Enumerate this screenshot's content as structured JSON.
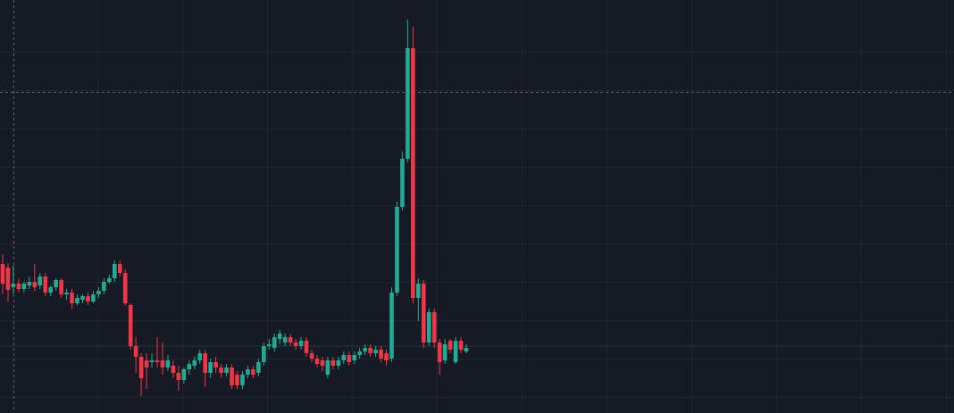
{
  "chart_data": {
    "type": "candlestick",
    "open": [
      167,
      163,
      141,
      145,
      139,
      143,
      147,
      143,
      153,
      135,
      141,
      149,
      133,
      135,
      123,
      127,
      131,
      125,
      133,
      137,
      147,
      151,
      167,
      157,
      121,
      75,
      63,
      59,
      57,
      59,
      59,
      51,
      53,
      45,
      37,
      49,
      53,
      59,
      67,
      45,
      57,
      51,
      45,
      51,
      43,
      31,
      43,
      49,
      45,
      57,
      75,
      73,
      83,
      79,
      85,
      79,
      75,
      81,
      67,
      61,
      59,
      43,
      59,
      53,
      59,
      65,
      59,
      65,
      69,
      73,
      67,
      71,
      67,
      61,
      135,
      231,
      285,
      409,
      129,
      145,
      79,
      113,
      79,
      59,
      81,
      57,
      81,
      69
    ],
    "high": [
      178,
      168,
      165,
      151,
      147,
      153,
      167,
      157,
      157,
      143,
      151,
      151,
      139,
      139,
      133,
      133,
      135,
      137,
      141,
      151,
      155,
      171,
      171,
      161,
      123,
      85,
      67,
      67,
      67,
      85,
      79,
      65,
      59,
      53,
      51,
      59,
      63,
      71,
      71,
      61,
      63,
      55,
      55,
      55,
      47,
      47,
      53,
      53,
      61,
      79,
      83,
      89,
      93,
      89,
      89,
      83,
      85,
      85,
      71,
      65,
      63,
      63,
      63,
      63,
      69,
      69,
      69,
      73,
      77,
      77,
      75,
      75,
      71,
      141,
      237,
      293,
      441,
      433,
      151,
      149,
      117,
      117,
      83,
      83,
      83,
      85,
      85,
      77
    ],
    "low": [
      133,
      125,
      133,
      135,
      135,
      139,
      137,
      139,
      131,
      131,
      137,
      129,
      127,
      117,
      121,
      123,
      121,
      123,
      129,
      133,
      145,
      147,
      153,
      121,
      71,
      45,
      19,
      27,
      51,
      51,
      43,
      47,
      39,
      25,
      33,
      43,
      49,
      55,
      29,
      39,
      45,
      39,
      41,
      27,
      27,
      27,
      39,
      39,
      41,
      53,
      71,
      69,
      77,
      75,
      75,
      71,
      71,
      63,
      57,
      51,
      47,
      39,
      49,
      49,
      55,
      53,
      55,
      61,
      65,
      63,
      63,
      57,
      53,
      57,
      131,
      227,
      281,
      123,
      103,
      73,
      75,
      73,
      43,
      55,
      67,
      55,
      67,
      67
    ],
    "close": [
      145,
      138,
      145,
      139,
      145,
      147,
      141,
      153,
      135,
      141,
      149,
      133,
      135,
      123,
      129,
      131,
      125,
      133,
      137,
      147,
      151,
      167,
      157,
      123,
      75,
      63,
      39,
      51,
      59,
      57,
      51,
      59,
      45,
      37,
      49,
      55,
      59,
      67,
      45,
      57,
      51,
      45,
      51,
      31,
      31,
      43,
      49,
      43,
      57,
      75,
      77,
      85,
      89,
      85,
      79,
      75,
      81,
      67,
      61,
      55,
      53,
      59,
      53,
      59,
      65,
      57,
      65,
      69,
      73,
      67,
      71,
      61,
      59,
      135,
      231,
      285,
      409,
      129,
      145,
      79,
      113,
      79,
      57,
      77,
      71,
      81,
      71,
      73
    ],
    "ylim": [
      0,
      463
    ],
    "up_color": "#22ab94",
    "down_color": "#f23645"
  }
}
